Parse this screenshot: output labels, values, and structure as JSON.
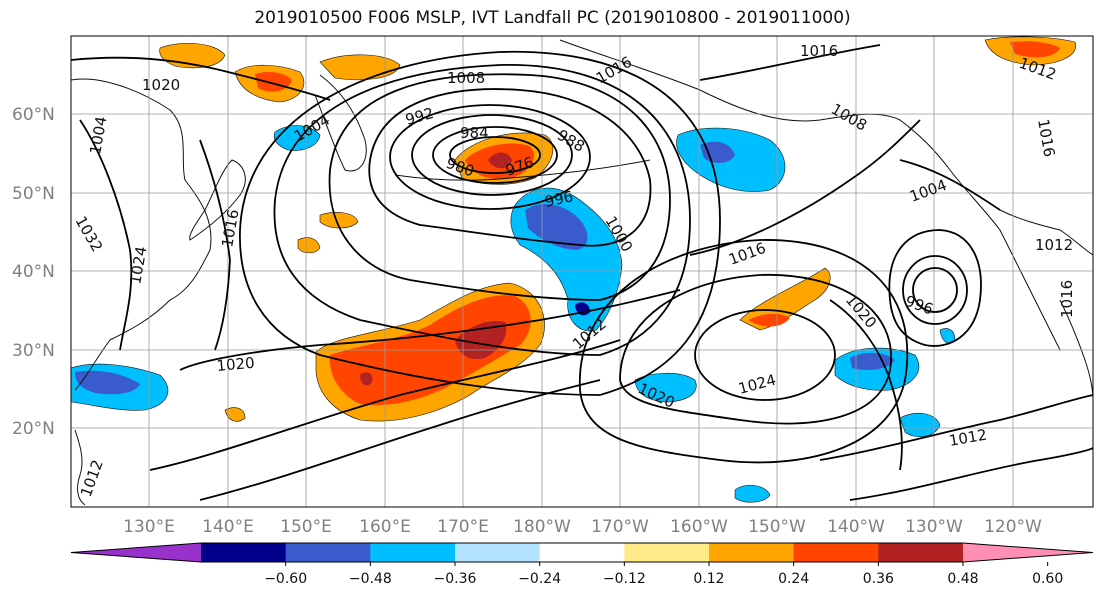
{
  "title": "2019010500 F006 MSLP, IVT Landfall PC (2019010800 - 2019011000)",
  "lat_labels": [
    "60°N",
    "50°N",
    "40°N",
    "30°N",
    "20°N"
  ],
  "lon_labels": [
    "130°E",
    "140°E",
    "150°E",
    "160°E",
    "170°E",
    "180°W",
    "170°W",
    "160°W",
    "150°W",
    "140°W",
    "130°W",
    "120°W"
  ],
  "contour_labels": [
    "1020",
    "1008",
    "1016",
    "1016",
    "1012",
    "1004",
    "992",
    "984",
    "988",
    "980",
    "976",
    "996",
    "1008",
    "1016",
    "1004",
    "1004",
    "1032",
    "1024",
    "1016",
    "1020",
    "1012",
    "1016",
    "1000",
    "996",
    "1020",
    "1024",
    "1020",
    "1012",
    "1012",
    "1016",
    "1012"
  ],
  "colorbar": {
    "colors": [
      "#9932cc",
      "#00008b",
      "#3a5bcc",
      "#00bfff",
      "#b3e4ff",
      "#ffffff",
      "#ffea8a",
      "#ffa500",
      "#ff4500",
      "#b22222",
      "#ff8fb4"
    ],
    "tick_labels": [
      "−0.60",
      "−0.48",
      "−0.36",
      "−0.24",
      "−0.12",
      "0.12",
      "0.24",
      "0.36",
      "0.48",
      "0.60"
    ]
  }
}
